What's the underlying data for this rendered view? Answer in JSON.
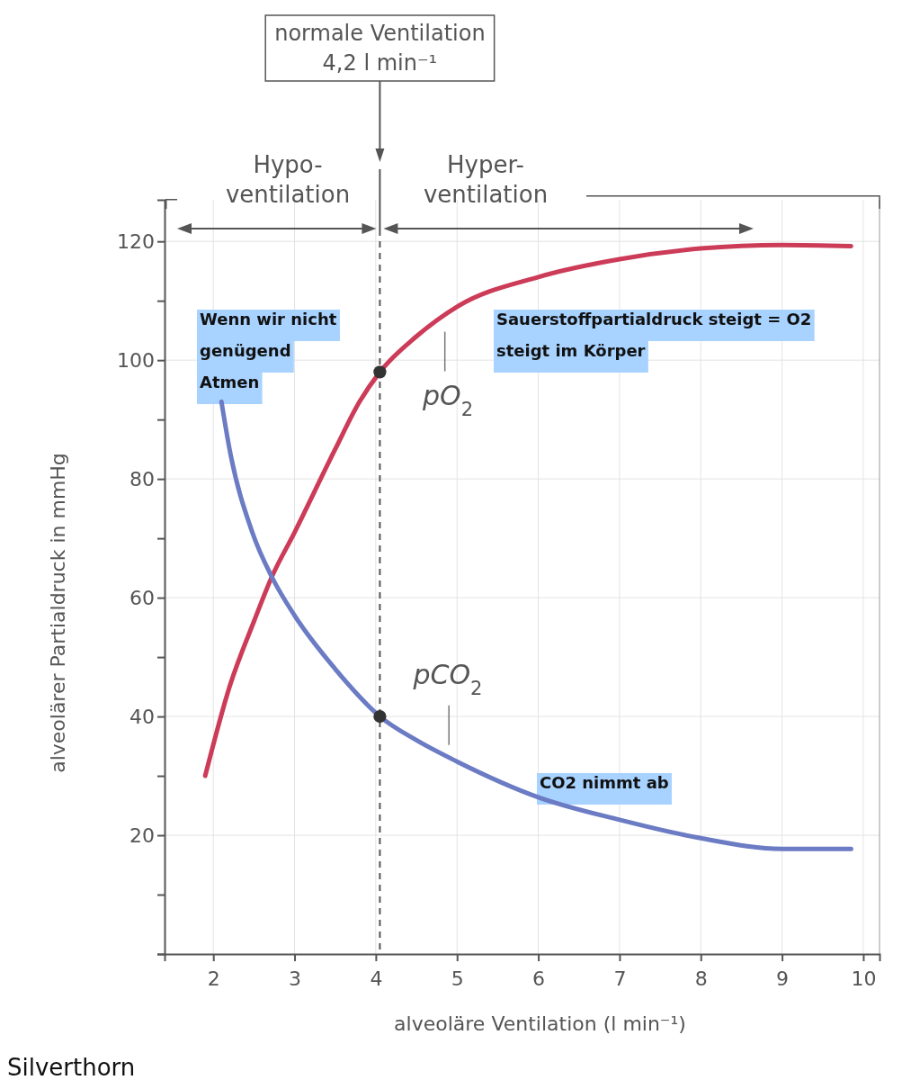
{
  "chart_data": {
    "type": "line",
    "xlabel": "alveoläre Ventilation (l min⁻¹)",
    "ylabel": "alveolärer Partialdruck in mmHg",
    "xlim": [
      1.4,
      10.2
    ],
    "ylim": [
      0,
      127
    ],
    "xticks": [
      2,
      3,
      4,
      5,
      6,
      7,
      8,
      9,
      10
    ],
    "yticks": [
      {
        "value": 0,
        "label": null
      },
      {
        "value": 10,
        "label": null
      },
      20,
      {
        "value": 30,
        "label": null
      },
      40,
      {
        "value": 50,
        "label": null
      },
      60,
      {
        "value": 70,
        "label": null
      },
      80,
      {
        "value": 90,
        "label": null
      },
      100,
      {
        "value": 110,
        "label": null
      },
      120
    ],
    "grid": true,
    "line_style": "solid",
    "marker": "none",
    "series": [
      {
        "name": "pO$_{2}$",
        "color": "#cc3b57",
        "x": [
          1.9,
          2.2,
          2.5,
          2.72,
          3,
          3.5,
          3.8,
          4.05,
          4.5,
          5,
          6,
          7,
          8,
          9,
          9.85
        ],
        "values": [
          30,
          45,
          56,
          63.5,
          71,
          85,
          93,
          98,
          104,
          109,
          114,
          117,
          118.8,
          119.4,
          119.2
        ]
      },
      {
        "name": "pCO$_{2}$",
        "color": "#6b7bc4",
        "x": [
          2.1,
          2.2,
          2.48,
          2.72,
          3,
          3.5,
          4.05,
          4.5,
          5,
          6,
          7,
          8,
          9,
          9.85
        ],
        "values": [
          93,
          85,
          71,
          63.5,
          57,
          48,
          40,
          36,
          32.4,
          26.4,
          22.6,
          19.5,
          17.7,
          17.7
        ]
      },
      {
        "type": "scatter",
        "color": "#333333",
        "marker": "circle",
        "x": [
          4.05,
          4.05
        ],
        "values": [
          98,
          40
        ]
      }
    ],
    "ref_lines": [
      {
        "axis": "x",
        "value": 4.05,
        "label": "normale Ventilation\n4,2 l min⁻¹",
        "line_style": "dashed",
        "color": "#555555"
      }
    ],
    "annotations": [
      "Hypo-\nventilation",
      "Hyper-\nventilation",
      "Wenn wir nicht\ngenügend\nAtmen",
      "Sauerstoffpartialdruck steigt = O2\nsteigt im Körper",
      "CO2 nimmt ab",
      "Silverthorn"
    ]
  }
}
